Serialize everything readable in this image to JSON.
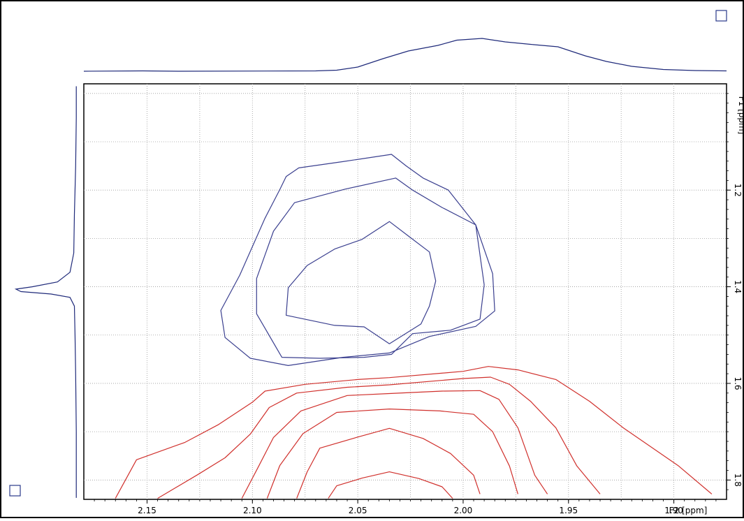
{
  "chart_data": {
    "type": "contour",
    "x_axis": {
      "label": "F2 [ppm]",
      "range": [
        2.18,
        1.875
      ],
      "reversed": true,
      "ticks": [
        2.15,
        2.1,
        2.05,
        2.0,
        1.95,
        1.9
      ],
      "tick_labels": [
        "2.15",
        "2.10",
        "2.05",
        "2.00",
        "1.95",
        "1.90"
      ]
    },
    "y_axis": {
      "label": "F1 [ppm]",
      "range": [
        0.98,
        1.84
      ],
      "reversed": true,
      "position": "right",
      "ticks": [
        1.2,
        1.4,
        1.6,
        1.8
      ],
      "tick_labels": [
        "1.2",
        "1.4",
        "1.6",
        "1.8"
      ]
    },
    "grid": true,
    "grid_x": [
      2.15,
      2.125,
      2.1,
      2.075,
      2.05,
      2.025,
      2.0,
      1.975,
      1.95,
      1.925,
      1.9
    ],
    "grid_y": [
      1.0,
      1.1,
      1.2,
      1.3,
      1.4,
      1.5,
      1.6,
      1.7,
      1.8
    ],
    "colors": {
      "positive": "#3a3f8f",
      "negative": "#d0302c",
      "projection": "#1f2a7a"
    },
    "contours": [
      {
        "sign": "positive",
        "level": 1,
        "closed": true,
        "points": [
          [
            2.034,
            1.126
          ],
          [
            2.057,
            1.141
          ],
          [
            2.078,
            1.154
          ],
          [
            2.084,
            1.172
          ],
          [
            2.087,
            1.199
          ],
          [
            2.094,
            1.258
          ],
          [
            2.106,
            1.376
          ],
          [
            2.115,
            1.449
          ],
          [
            2.113,
            1.505
          ],
          [
            2.101,
            1.548
          ],
          [
            2.083,
            1.563
          ],
          [
            2.057,
            1.546
          ],
          [
            2.035,
            1.537
          ],
          [
            2.016,
            1.503
          ],
          [
            1.994,
            1.482
          ],
          [
            1.985,
            1.45
          ],
          [
            1.986,
            1.373
          ],
          [
            1.994,
            1.272
          ],
          [
            2.007,
            1.2
          ],
          [
            2.019,
            1.175
          ],
          [
            2.027,
            1.15
          ],
          [
            2.034,
            1.126
          ]
        ]
      },
      {
        "sign": "positive",
        "level": 2,
        "closed": true,
        "points": [
          [
            2.032,
            1.175
          ],
          [
            2.056,
            1.198
          ],
          [
            2.08,
            1.226
          ],
          [
            2.09,
            1.285
          ],
          [
            2.098,
            1.383
          ],
          [
            2.098,
            1.456
          ],
          [
            2.086,
            1.546
          ],
          [
            2.068,
            1.548
          ],
          [
            2.047,
            1.546
          ],
          [
            2.034,
            1.54
          ],
          [
            2.024,
            1.497
          ],
          [
            2.006,
            1.49
          ],
          [
            1.992,
            1.467
          ],
          [
            1.99,
            1.396
          ],
          [
            1.994,
            1.272
          ],
          [
            2.01,
            1.236
          ],
          [
            2.024,
            1.2
          ],
          [
            2.032,
            1.175
          ]
        ]
      },
      {
        "sign": "positive",
        "level": 3,
        "closed": true,
        "points": [
          [
            2.035,
            1.265
          ],
          [
            2.048,
            1.302
          ],
          [
            2.061,
            1.322
          ],
          [
            2.074,
            1.356
          ],
          [
            2.083,
            1.402
          ],
          [
            2.084,
            1.459
          ],
          [
            2.061,
            1.48
          ],
          [
            2.047,
            1.483
          ],
          [
            2.035,
            1.518
          ],
          [
            2.02,
            1.477
          ],
          [
            2.016,
            1.44
          ],
          [
            2.013,
            1.388
          ],
          [
            2.016,
            1.328
          ],
          [
            2.026,
            1.295
          ],
          [
            2.035,
            1.265
          ]
        ]
      },
      {
        "sign": "negative",
        "level": 1,
        "closed": false,
        "points": [
          [
            2.165,
            1.838
          ],
          [
            2.155,
            1.758
          ],
          [
            2.132,
            1.722
          ],
          [
            2.116,
            1.685
          ],
          [
            2.1,
            1.639
          ],
          [
            2.094,
            1.616
          ],
          [
            2.075,
            1.602
          ],
          [
            2.05,
            1.592
          ],
          [
            2.035,
            1.588
          ],
          [
            2.0,
            1.575
          ],
          [
            1.988,
            1.565
          ],
          [
            1.974,
            1.572
          ],
          [
            1.956,
            1.592
          ],
          [
            1.94,
            1.637
          ],
          [
            1.924,
            1.692
          ],
          [
            1.898,
            1.77
          ],
          [
            1.882,
            1.829
          ]
        ]
      },
      {
        "sign": "negative",
        "level": 2,
        "closed": false,
        "points": [
          [
            2.145,
            1.838
          ],
          [
            2.126,
            1.789
          ],
          [
            2.113,
            1.754
          ],
          [
            2.101,
            1.705
          ],
          [
            2.092,
            1.65
          ],
          [
            2.079,
            1.62
          ],
          [
            2.055,
            1.608
          ],
          [
            2.035,
            1.603
          ],
          [
            2.0,
            1.59
          ],
          [
            1.987,
            1.587
          ],
          [
            1.978,
            1.602
          ],
          [
            1.968,
            1.637
          ],
          [
            1.956,
            1.692
          ],
          [
            1.946,
            1.771
          ],
          [
            1.935,
            1.829
          ]
        ]
      },
      {
        "sign": "negative",
        "level": 3,
        "closed": false,
        "points": [
          [
            2.105,
            1.838
          ],
          [
            2.097,
            1.771
          ],
          [
            2.09,
            1.712
          ],
          [
            2.077,
            1.657
          ],
          [
            2.055,
            1.625
          ],
          [
            2.035,
            1.621
          ],
          [
            2.01,
            1.616
          ],
          [
            1.992,
            1.615
          ],
          [
            1.983,
            1.633
          ],
          [
            1.974,
            1.692
          ],
          [
            1.966,
            1.79
          ],
          [
            1.96,
            1.829
          ]
        ]
      },
      {
        "sign": "negative",
        "level": 4,
        "closed": false,
        "points": [
          [
            2.093,
            1.838
          ],
          [
            2.087,
            1.77
          ],
          [
            2.076,
            1.704
          ],
          [
            2.06,
            1.66
          ],
          [
            2.035,
            1.653
          ],
          [
            2.011,
            1.657
          ],
          [
            1.995,
            1.664
          ],
          [
            1.986,
            1.7
          ],
          [
            1.978,
            1.771
          ],
          [
            1.974,
            1.829
          ]
        ]
      },
      {
        "sign": "negative",
        "level": 5,
        "closed": false,
        "points": [
          [
            2.079,
            1.838
          ],
          [
            2.074,
            1.783
          ],
          [
            2.068,
            1.734
          ],
          [
            2.05,
            1.711
          ],
          [
            2.035,
            1.693
          ],
          [
            2.019,
            1.714
          ],
          [
            2.006,
            1.745
          ],
          [
            1.995,
            1.79
          ],
          [
            1.992,
            1.829
          ]
        ]
      },
      {
        "sign": "negative",
        "level": 6,
        "closed": false,
        "points": [
          [
            2.064,
            1.838
          ],
          [
            2.06,
            1.812
          ],
          [
            2.048,
            1.796
          ],
          [
            2.035,
            1.783
          ],
          [
            2.021,
            1.797
          ],
          [
            2.01,
            1.814
          ],
          [
            2.005,
            1.838
          ]
        ]
      }
    ],
    "projection_f2": {
      "points": [
        [
          2.18,
          0.02
        ],
        [
          2.152,
          0.03
        ],
        [
          2.135,
          0.02
        ],
        [
          2.07,
          0.03
        ],
        [
          2.06,
          0.05
        ],
        [
          2.05,
          0.14
        ],
        [
          2.038,
          0.38
        ],
        [
          2.026,
          0.6
        ],
        [
          2.012,
          0.76
        ],
        [
          2.003,
          0.91
        ],
        [
          1.991,
          0.96
        ],
        [
          1.98,
          0.86
        ],
        [
          1.968,
          0.79
        ],
        [
          1.955,
          0.72
        ],
        [
          1.942,
          0.46
        ],
        [
          1.932,
          0.3
        ],
        [
          1.92,
          0.16
        ],
        [
          1.905,
          0.07
        ],
        [
          1.89,
          0.04
        ],
        [
          1.875,
          0.03
        ]
      ]
    },
    "projection_f1": {
      "points": [
        [
          0.985,
          0.02
        ],
        [
          1.05,
          0.02
        ],
        [
          1.15,
          0.03
        ],
        [
          1.25,
          0.05
        ],
        [
          1.33,
          0.06
        ],
        [
          1.37,
          0.12
        ],
        [
          1.39,
          0.32
        ],
        [
          1.4,
          0.72
        ],
        [
          1.405,
          0.98
        ],
        [
          1.41,
          0.9
        ],
        [
          1.415,
          0.42
        ],
        [
          1.422,
          0.12
        ],
        [
          1.44,
          0.05
        ],
        [
          1.5,
          0.04
        ],
        [
          1.58,
          0.03
        ],
        [
          1.7,
          0.02
        ],
        [
          1.837,
          0.02
        ]
      ]
    }
  }
}
